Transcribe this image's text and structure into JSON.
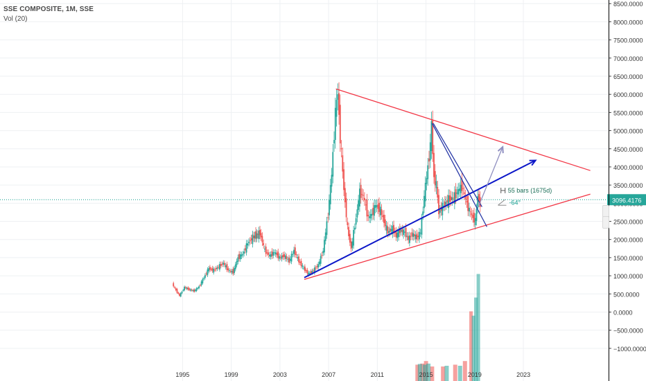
{
  "header": {
    "title": "SSE COMPOSITE, 1M, SSE",
    "volume_label": "Vol (20)"
  },
  "colors": {
    "up": "#26a69a",
    "down": "#ef5350",
    "trend_red": "#f23645",
    "trend_blue": "#0b16c8",
    "trend_navy": "#2637a6",
    "forecast_arrow": "#8f8fc0",
    "price_line": "#0a9a8a"
  },
  "chart_data": [
    {
      "type": "candlestick",
      "title": "SSE COMPOSITE, 1M, SSE",
      "x_tick_labels": [
        "1995",
        "1999",
        "2003",
        "2007",
        "2011",
        "2015",
        "2019",
        "2023"
      ],
      "x_ticks": [
        1995,
        1999,
        2003,
        2007,
        2011,
        2015,
        2019,
        2023
      ],
      "xlim": [
        1980,
        2030
      ],
      "y_tick_labels": [
        "8500.0000",
        "8000.0000",
        "7500.0000",
        "7000.0000",
        "6500.0000",
        "6000.0000",
        "5500.0000",
        "5000.0000",
        "4500.0000",
        "4000.0000",
        "3500.0000",
        "3000.0000",
        "2500.0000",
        "2000.0000",
        "1500.0000",
        "1000.0000",
        "500.0000",
        "0.0000",
        "−500.0000",
        "−1000.0000"
      ],
      "y_ticks": [
        8500,
        8000,
        7500,
        7000,
        6500,
        6000,
        5500,
        5000,
        4500,
        4000,
        3500,
        3000,
        2500,
        2000,
        1500,
        1000,
        500,
        0,
        -500,
        -1000
      ],
      "ylim": [
        -1900,
        8600
      ],
      "last_price_label": "3096.4176",
      "last_price": 3096.42,
      "grid": true,
      "price_series": [
        [
          1994.2,
          780
        ],
        [
          1994.5,
          600
        ],
        [
          1994.8,
          450
        ],
        [
          1995.2,
          680
        ],
        [
          1995.6,
          620
        ],
        [
          1996.0,
          580
        ],
        [
          1996.4,
          700
        ],
        [
          1996.8,
          950
        ],
        [
          1997.2,
          1200
        ],
        [
          1997.6,
          1150
        ],
        [
          1998.0,
          1250
        ],
        [
          1998.4,
          1350
        ],
        [
          1998.8,
          1150
        ],
        [
          1999.2,
          1100
        ],
        [
          1999.6,
          1500
        ],
        [
          2000.0,
          1600
        ],
        [
          2000.4,
          1900
        ],
        [
          2000.8,
          2050
        ],
        [
          2001.4,
          2180
        ],
        [
          2001.8,
          1700
        ],
        [
          2002.2,
          1550
        ],
        [
          2002.6,
          1650
        ],
        [
          2003.0,
          1500
        ],
        [
          2003.4,
          1550
        ],
        [
          2003.8,
          1400
        ],
        [
          2004.2,
          1700
        ],
        [
          2004.6,
          1400
        ],
        [
          2005.0,
          1200
        ],
        [
          2005.4,
          1050
        ],
        [
          2005.8,
          1150
        ],
        [
          2006.2,
          1300
        ],
        [
          2006.6,
          1700
        ],
        [
          2007.0,
          2700
        ],
        [
          2007.3,
          3800
        ],
        [
          2007.6,
          5500
        ],
        [
          2007.8,
          6050
        ],
        [
          2008.0,
          4800
        ],
        [
          2008.3,
          3400
        ],
        [
          2008.6,
          2300
        ],
        [
          2008.9,
          1750
        ],
        [
          2009.3,
          2600
        ],
        [
          2009.6,
          3300
        ],
        [
          2009.9,
          3200
        ],
        [
          2010.3,
          2600
        ],
        [
          2010.6,
          2700
        ],
        [
          2010.9,
          2950
        ],
        [
          2011.3,
          2800
        ],
        [
          2011.6,
          2500
        ],
        [
          2011.9,
          2200
        ],
        [
          2012.3,
          2300
        ],
        [
          2012.6,
          2100
        ],
        [
          2012.9,
          2250
        ],
        [
          2013.3,
          2200
        ],
        [
          2013.6,
          2000
        ],
        [
          2013.9,
          2150
        ],
        [
          2014.3,
          2050
        ],
        [
          2014.6,
          2200
        ],
        [
          2014.9,
          3200
        ],
        [
          2015.2,
          4000
        ],
        [
          2015.4,
          4600
        ],
        [
          2015.5,
          5150
        ],
        [
          2015.7,
          3700
        ],
        [
          2015.9,
          3500
        ],
        [
          2016.1,
          2750
        ],
        [
          2016.5,
          2950
        ],
        [
          2016.9,
          3100
        ],
        [
          2017.3,
          3150
        ],
        [
          2017.7,
          3350
        ],
        [
          2018.0,
          3480
        ],
        [
          2018.3,
          3100
        ],
        [
          2018.6,
          2800
        ],
        [
          2018.9,
          2600
        ],
        [
          2019.1,
          2500
        ],
        [
          2019.3,
          3200
        ],
        [
          2019.5,
          2950
        ]
      ]
    },
    {
      "type": "bar",
      "title": "Vol (20)",
      "units": "price-scale units",
      "series": [
        {
          "color": "#ef5350",
          "x": [
            2014.3,
            2014.7,
            2015.0,
            2015.5,
            2016.4,
            2017.4,
            2018.2,
            2018.7
          ],
          "values": [
            -1450,
            -1420,
            -1350,
            -1500,
            -1500,
            -1450,
            -1350,
            20
          ]
        },
        {
          "color": "#26a69a",
          "x": [
            2014.5,
            2014.9,
            2015.2,
            2016.7,
            2017.8,
            2018.9,
            2019.1,
            2019.3
          ],
          "values": [
            -1430,
            -1450,
            -1420,
            -1480,
            -1480,
            -100,
            400,
            1050
          ]
        }
      ],
      "baseline": -1900
    }
  ],
  "trendlines": [
    {
      "color": "#f23645",
      "from": [
        2007.6,
        6150
      ],
      "to": [
        2028.5,
        3900
      ]
    },
    {
      "color": "#f23645",
      "from": [
        2005.0,
        900
      ],
      "to": [
        2028.5,
        3250
      ]
    },
    {
      "color": "#0b16c8",
      "from": [
        2005.0,
        950
      ],
      "to": [
        2024.0,
        4180
      ]
    },
    {
      "color": "#2637a6",
      "from": [
        2015.5,
        5200
      ],
      "to": [
        2020.0,
        2350
      ]
    },
    {
      "color": "#2637a6",
      "from": [
        2015.6,
        5200
      ],
      "to": [
        2019.6,
        2900
      ]
    },
    {
      "color": "#8f8fc0",
      "from": [
        2019.3,
        2900
      ],
      "to": [
        2021.3,
        4550
      ]
    }
  ],
  "annotations": [
    {
      "text": "55 bars (1675d)",
      "at": [
        2021.5,
        3350
      ]
    },
    {
      "text": "-64°",
      "at": [
        2021.6,
        3020
      ]
    }
  ]
}
